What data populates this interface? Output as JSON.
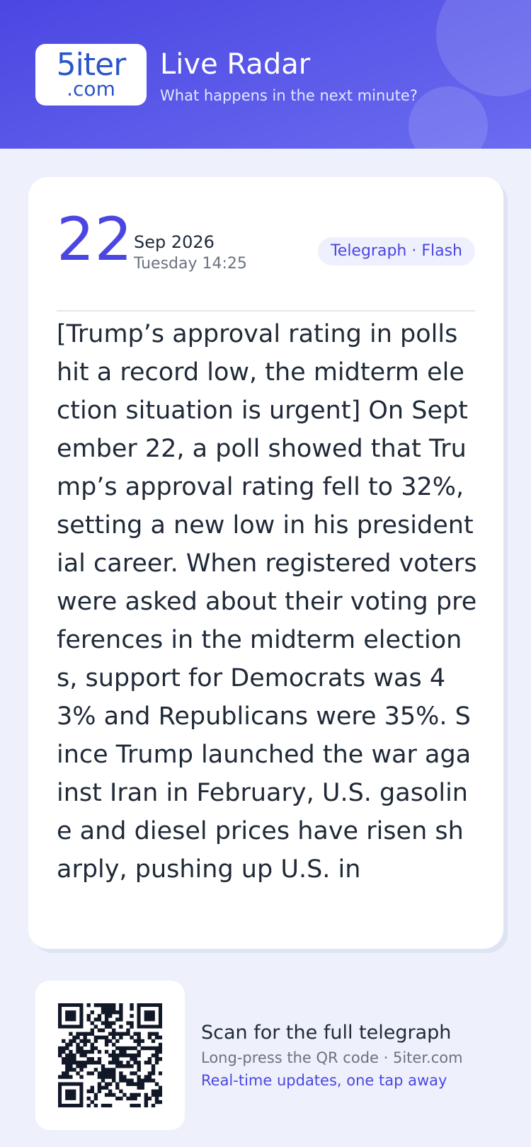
{
  "header": {
    "logo_main": "5iter",
    "logo_sub": ".com",
    "title": "Live Radar",
    "subtitle": "What happens in the next minute?"
  },
  "card": {
    "day": "22",
    "month_year": "Sep 2026",
    "weekday_time": "Tuesday 14:25",
    "tag": "Telegraph · Flash",
    "body": "[Trump’s approval rating in polls hit a record low, the midterm election situation is urgent] On September 22, a poll showed that Trump’s approval rating fell to 32%, setting a new low in his presidential career. When registered voters were asked about their voting preferences in the midterm elections, support for Democrats was 43% and Republicans were 35%. Since Trump launched the war against Iran in February, U.S. gasoline and diesel prices have risen sharply, pushing up U.S. in"
  },
  "footer": {
    "cta": "Scan for the full telegraph",
    "hint": "Long-press the QR code · 5iter.com",
    "tagline": "Real-time updates, one tap away"
  }
}
